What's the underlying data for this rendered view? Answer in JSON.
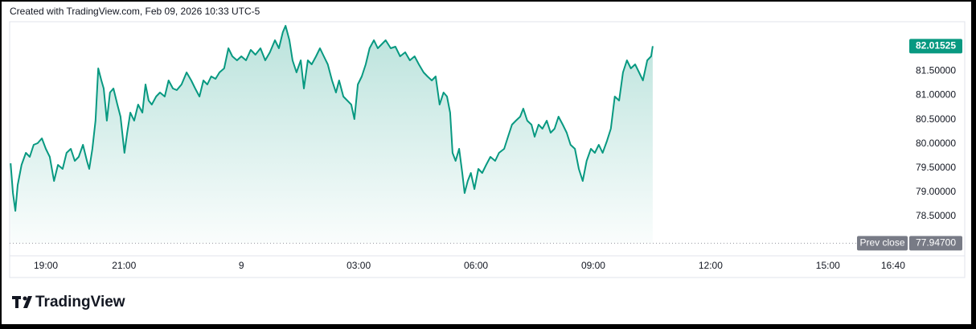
{
  "header": "Created with TradingView.com, Feb 09, 2026 10:33 UTC-5",
  "logo": "TradingView",
  "chart_data": {
    "type": "area",
    "color": "#089981",
    "grid": false,
    "xlim": [
      18.075,
      41.06
    ],
    "ylim": [
      77.72,
      82.52
    ],
    "xticks": [
      {
        "value": 19,
        "label": "19:00"
      },
      {
        "value": 21,
        "label": "21:00"
      },
      {
        "value": 24,
        "label": "9"
      },
      {
        "value": 27,
        "label": "03:00"
      },
      {
        "value": 30,
        "label": "06:00"
      },
      {
        "value": 33,
        "label": "09:00"
      },
      {
        "value": 36,
        "label": "12:00"
      },
      {
        "value": 39,
        "label": "15:00"
      },
      {
        "value": 40.6667,
        "label": "16:40"
      }
    ],
    "yticks": [
      {
        "value": 78.5,
        "label": "78.50000"
      },
      {
        "value": 79,
        "label": "79.00000"
      },
      {
        "value": 79.5,
        "label": "79.50000"
      },
      {
        "value": 80,
        "label": "80.00000"
      },
      {
        "value": 80.5,
        "label": "80.50000"
      },
      {
        "value": 81,
        "label": "81.00000"
      },
      {
        "value": 81.5,
        "label": "81.50000"
      }
    ],
    "prev_close": {
      "name": "Prev close",
      "value": 77.947,
      "label": "77.94700"
    },
    "x": [
      18.1,
      18.16,
      18.22,
      18.28,
      18.38,
      18.49,
      18.59,
      18.69,
      18.79,
      18.9,
      19.0,
      19.1,
      19.21,
      19.31,
      19.43,
      19.53,
      19.64,
      19.74,
      19.84,
      19.95,
      20.05,
      20.11,
      20.19,
      20.27,
      20.34,
      20.42,
      20.48,
      20.56,
      20.64,
      20.73,
      20.83,
      20.91,
      21.01,
      21.08,
      21.16,
      21.26,
      21.36,
      21.47,
      21.55,
      21.63,
      21.71,
      21.82,
      21.92,
      22.04,
      22.14,
      22.25,
      22.35,
      22.47,
      22.6,
      22.72,
      22.82,
      22.93,
      23.03,
      23.13,
      23.23,
      23.34,
      23.44,
      23.56,
      23.67,
      23.77,
      23.89,
      24.0,
      24.12,
      24.24,
      24.36,
      24.49,
      24.61,
      24.73,
      24.86,
      24.96,
      25.06,
      25.13,
      25.23,
      25.31,
      25.41,
      25.52,
      25.6,
      25.7,
      25.8,
      25.91,
      26.01,
      26.11,
      26.21,
      26.32,
      26.42,
      26.5,
      26.61,
      26.71,
      26.81,
      26.89,
      26.98,
      27.08,
      27.18,
      27.28,
      27.39,
      27.49,
      27.59,
      27.69,
      27.82,
      27.94,
      28.06,
      28.19,
      28.31,
      28.43,
      28.54,
      28.66,
      28.76,
      28.87,
      28.97,
      29.07,
      29.17,
      29.26,
      29.34,
      29.4,
      29.48,
      29.57,
      29.65,
      29.71,
      29.79,
      29.87,
      29.96,
      30.06,
      30.16,
      30.26,
      30.37,
      30.49,
      30.59,
      30.72,
      30.82,
      30.92,
      31.02,
      31.13,
      31.21,
      31.31,
      31.42,
      31.5,
      31.6,
      31.7,
      31.81,
      31.91,
      32.01,
      32.11,
      32.22,
      32.32,
      32.42,
      32.53,
      32.63,
      32.73,
      32.83,
      32.94,
      33.04,
      33.14,
      33.24,
      33.35,
      33.45,
      33.55,
      33.66,
      33.76,
      33.86,
      33.96,
      34.07,
      34.17,
      34.27,
      34.38,
      34.48,
      34.52
    ],
    "values": [
      79.596,
      78.982,
      78.616,
      79.148,
      79.563,
      79.812,
      79.729,
      79.978,
      80.012,
      80.111,
      79.895,
      79.729,
      79.231,
      79.563,
      79.48,
      79.812,
      79.895,
      79.646,
      79.729,
      79.978,
      79.646,
      79.48,
      79.895,
      80.477,
      81.556,
      81.307,
      81.141,
      80.477,
      81.058,
      81.141,
      80.809,
      80.56,
      79.812,
      80.228,
      80.643,
      80.477,
      80.809,
      80.643,
      81.224,
      80.892,
      80.809,
      80.975,
      81.058,
      80.975,
      81.307,
      81.141,
      81.108,
      81.224,
      81.473,
      81.307,
      81.141,
      80.975,
      81.307,
      81.224,
      81.39,
      81.341,
      81.473,
      81.556,
      81.972,
      81.806,
      81.723,
      81.806,
      81.723,
      81.939,
      81.839,
      81.972,
      81.723,
      81.889,
      82.138,
      81.972,
      82.304,
      82.437,
      82.138,
      81.723,
      81.473,
      81.723,
      81.141,
      81.723,
      81.64,
      81.806,
      81.972,
      81.806,
      81.64,
      81.307,
      81.058,
      81.307,
      80.975,
      80.892,
      80.809,
      80.51,
      81.224,
      81.39,
      81.64,
      81.972,
      82.138,
      81.972,
      82.055,
      82.138,
      81.972,
      82.005,
      81.806,
      81.889,
      81.723,
      81.806,
      81.64,
      81.473,
      81.39,
      81.307,
      81.39,
      80.809,
      81.058,
      80.975,
      80.643,
      79.812,
      79.646,
      79.895,
      79.397,
      78.982,
      79.231,
      79.397,
      79.065,
      79.48,
      79.397,
      79.563,
      79.729,
      79.646,
      79.812,
      79.895,
      80.145,
      80.394,
      80.477,
      80.56,
      80.726,
      80.477,
      80.394,
      80.145,
      80.394,
      80.311,
      80.477,
      80.228,
      80.311,
      80.56,
      80.394,
      80.228,
      79.978,
      79.895,
      79.48,
      79.231,
      79.646,
      79.895,
      79.812,
      79.978,
      79.812,
      80.061,
      80.311,
      80.975,
      80.892,
      81.473,
      81.723,
      81.556,
      81.64,
      81.473,
      81.307,
      81.723,
      81.806,
      82.01525
    ]
  }
}
